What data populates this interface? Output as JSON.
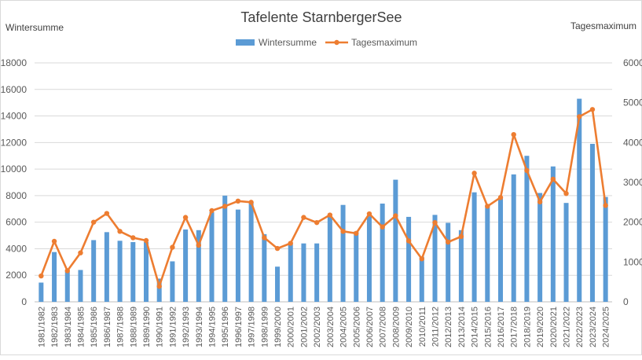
{
  "chart_data": {
    "type": "bar+line",
    "title": "Tafelente StarnbergerSee",
    "ylabel_left": "Wintersumme",
    "ylabel_right": "Tagesmaximum",
    "ylim_left": [
      0,
      18000
    ],
    "yticks_left": [
      0,
      2000,
      4000,
      6000,
      8000,
      10000,
      12000,
      14000,
      16000,
      18000
    ],
    "ylim_right": [
      0,
      6000
    ],
    "yticks_right": [
      0,
      1000,
      2000,
      3000,
      4000,
      5000,
      6000
    ],
    "grid": "horizontal",
    "legend_position": "top-center",
    "categories": [
      "1981/1982",
      "1982/1983",
      "1983/1984",
      "1984/1985",
      "1985/1986",
      "1986/1987",
      "1987/1988",
      "1988/1989",
      "1989/1990",
      "1990/1991",
      "1991/1992",
      "1992/1993",
      "1993/1994",
      "1994/1995",
      "1995/1996",
      "1996/1997",
      "1997/1998",
      "1998/1999",
      "1999/2000",
      "2000/2001",
      "2001/2002",
      "2002/2003",
      "2003/2004",
      "2004/2005",
      "2005/2006",
      "2006/2007",
      "2007/2008",
      "2008/2009",
      "2009/2010",
      "2010/2011",
      "2011/2012",
      "2012/2013",
      "2013/2014",
      "2014/2015",
      "2015/2016",
      "2016/2017",
      "2017/2018",
      "2018/2019",
      "2019/2020",
      "2020/2021",
      "2021/2022",
      "2022/2023",
      "2023/2024",
      "2024/2025"
    ],
    "series": [
      {
        "name": "Wintersumme",
        "type": "bar",
        "axis": "left",
        "color": "#5b9bd5",
        "values": [
          1450,
          3750,
          2300,
          2400,
          4650,
          5250,
          4600,
          4500,
          4500,
          1750,
          3050,
          5450,
          5400,
          6750,
          8000,
          6950,
          7500,
          5100,
          2650,
          4400,
          4400,
          4400,
          6450,
          7300,
          5300,
          6450,
          7400,
          9200,
          6400,
          3400,
          6550,
          5950,
          5400,
          8250,
          7300,
          7900,
          9600,
          11000,
          8200,
          10200,
          7450,
          15300,
          11900,
          7900
        ]
      },
      {
        "name": "Tagesmaximum",
        "type": "line",
        "axis": "right",
        "color": "#ed7d31",
        "values": [
          650,
          1520,
          780,
          1230,
          2000,
          2220,
          1770,
          1610,
          1540,
          390,
          1370,
          2120,
          1420,
          2290,
          2400,
          2530,
          2500,
          1610,
          1340,
          1470,
          2120,
          1990,
          2180,
          1770,
          1720,
          2210,
          1880,
          2160,
          1530,
          1080,
          1990,
          1500,
          1640,
          3230,
          2400,
          2620,
          4200,
          3300,
          2510,
          3080,
          2720,
          4650,
          4830,
          2420
        ]
      }
    ]
  }
}
